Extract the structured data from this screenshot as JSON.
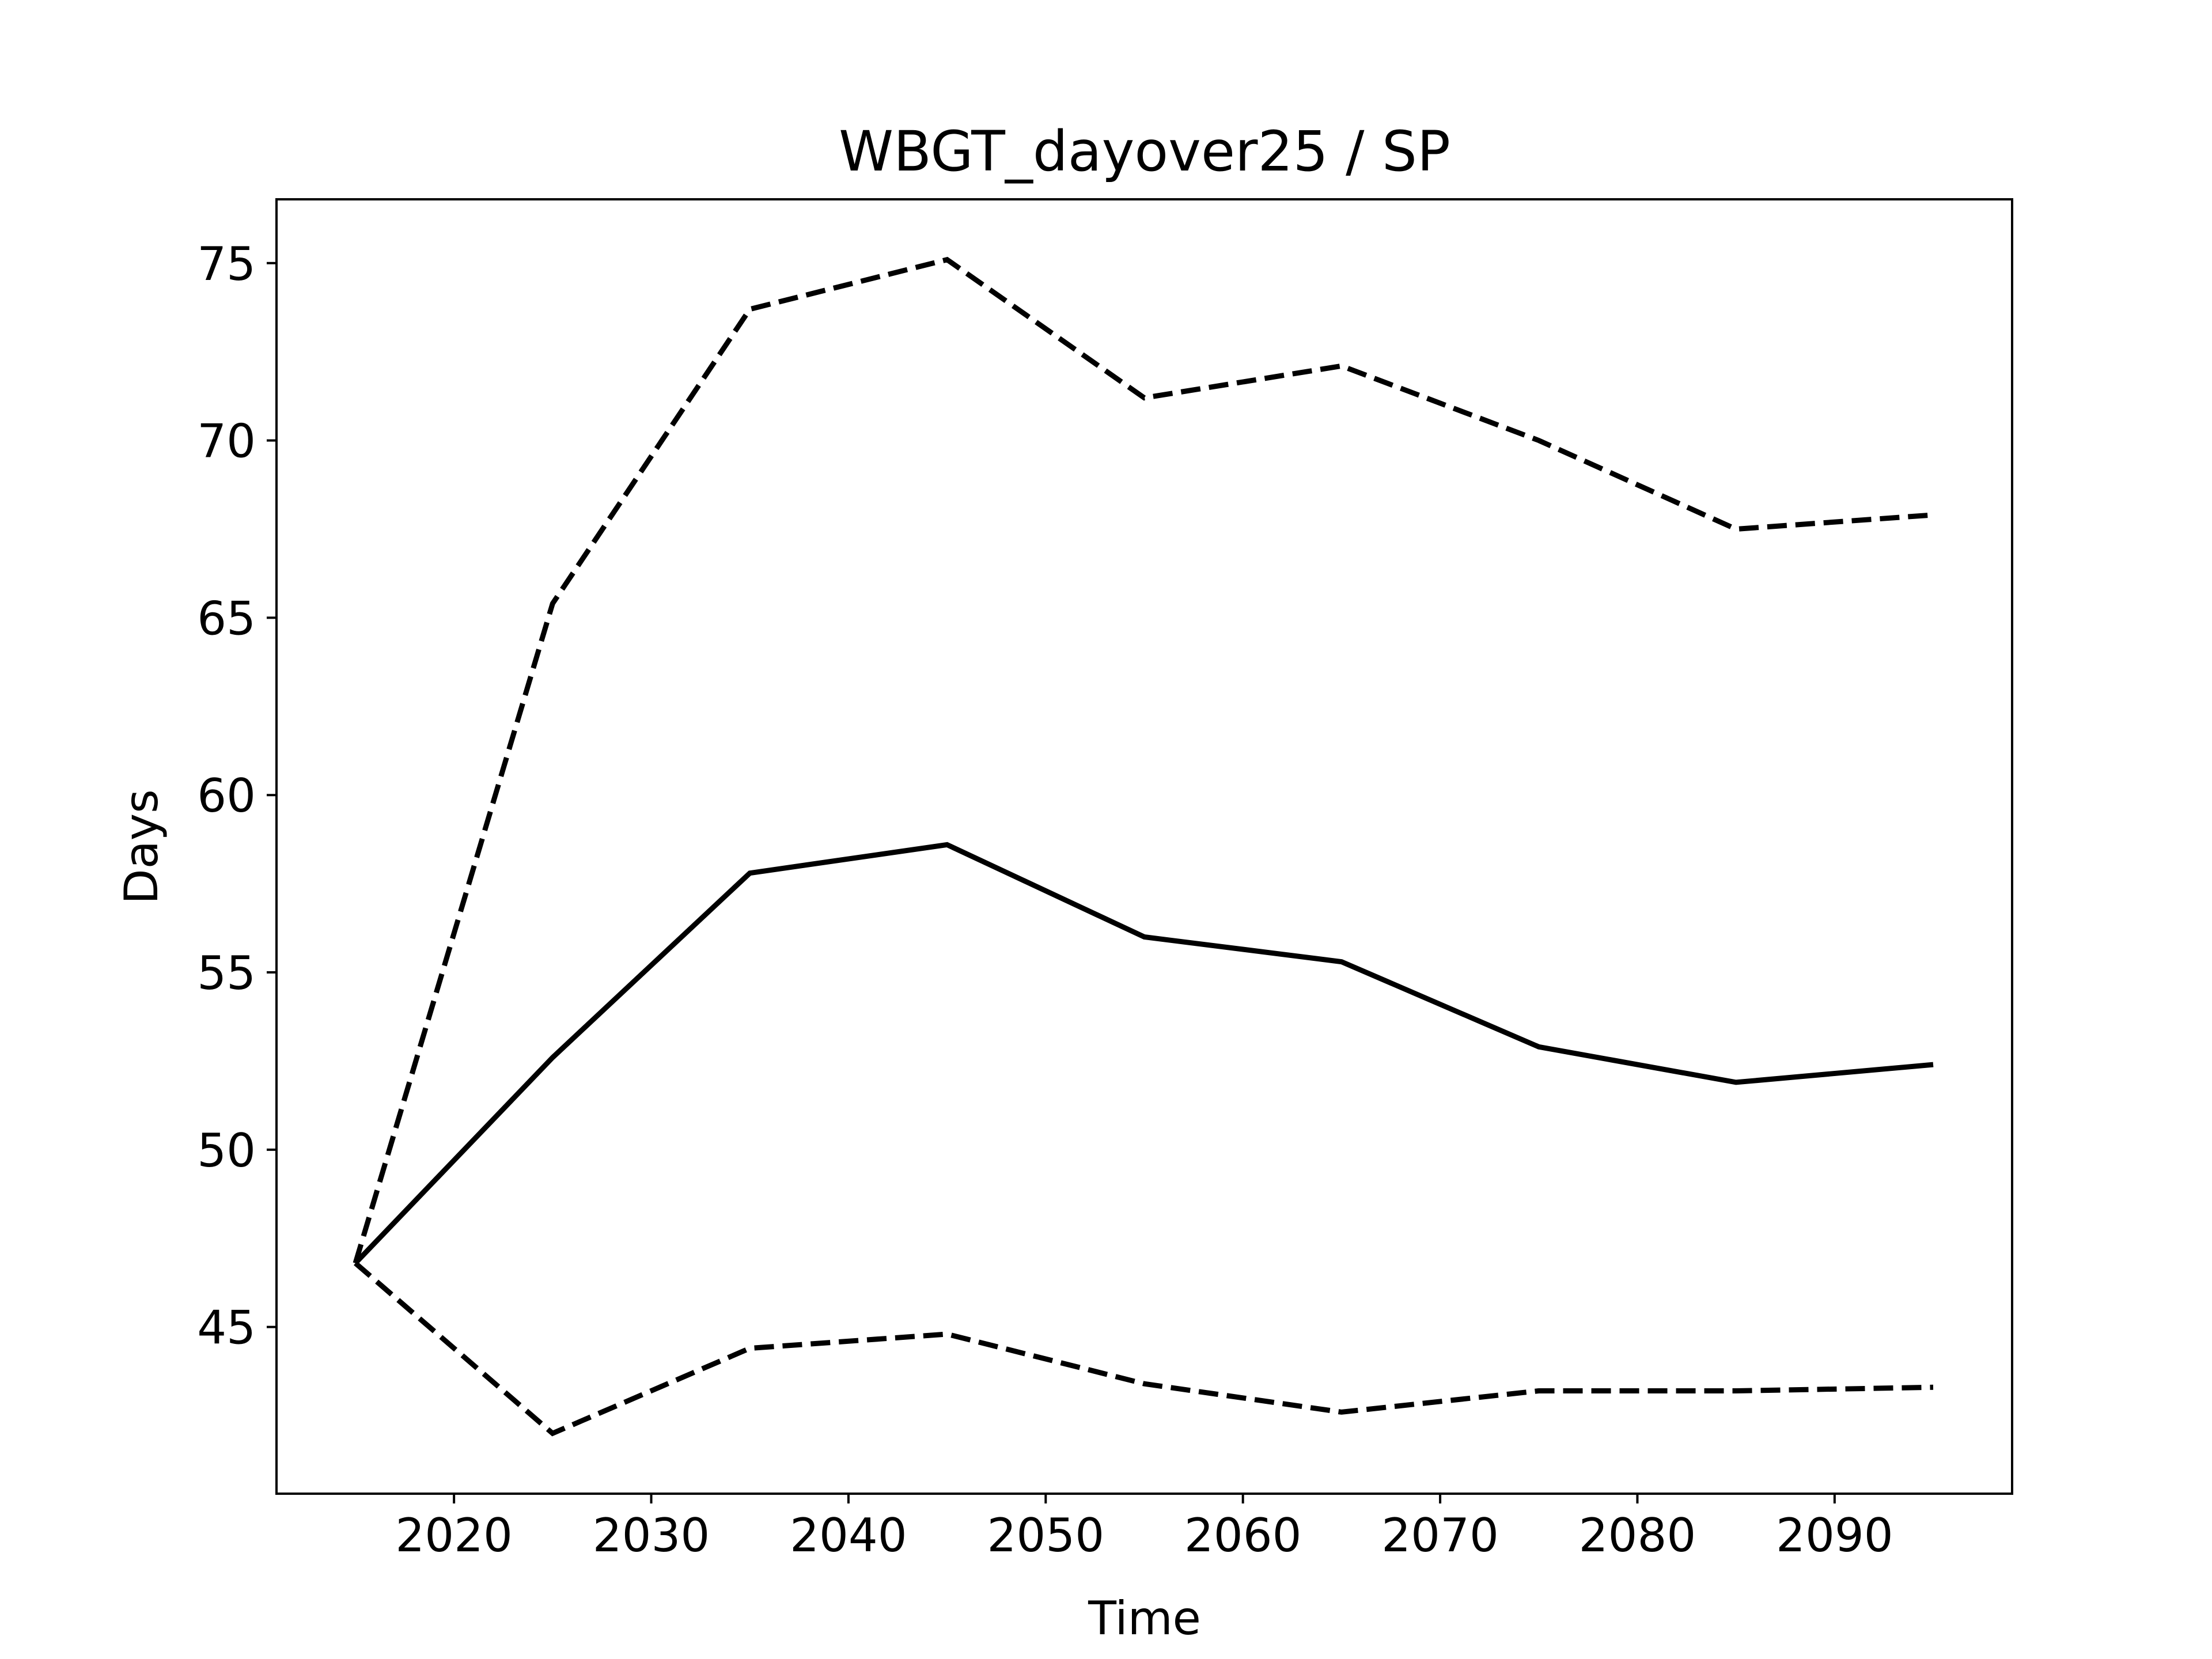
{
  "chart_data": {
    "type": "line",
    "title": "WBGT_dayover25 / SP",
    "xlabel": "Time",
    "ylabel": "Days",
    "xlim": [
      2011,
      2099
    ],
    "ylim": [
      40.3,
      76.8
    ],
    "x_ticks": [
      2020,
      2030,
      2040,
      2050,
      2060,
      2070,
      2080,
      2090
    ],
    "y_ticks": [
      45,
      50,
      55,
      60,
      65,
      70,
      75
    ],
    "grid": false,
    "legend": "none",
    "x": [
      2015,
      2025,
      2035,
      2045,
      2055,
      2065,
      2075,
      2085,
      2095
    ],
    "series": [
      {
        "style": "solid",
        "color": "#000000",
        "values": [
          46.8,
          52.6,
          57.8,
          58.6,
          56.0,
          55.3,
          52.9,
          51.9,
          52.4
        ]
      },
      {
        "style": "dashed",
        "color": "#000000",
        "values": [
          46.8,
          65.4,
          73.7,
          75.1,
          71.2,
          72.1,
          70.0,
          67.5,
          67.9
        ]
      },
      {
        "style": "dashed",
        "color": "#000000",
        "values": [
          46.8,
          42.0,
          44.4,
          44.8,
          43.4,
          42.6,
          43.2,
          43.2,
          43.3
        ]
      }
    ]
  }
}
